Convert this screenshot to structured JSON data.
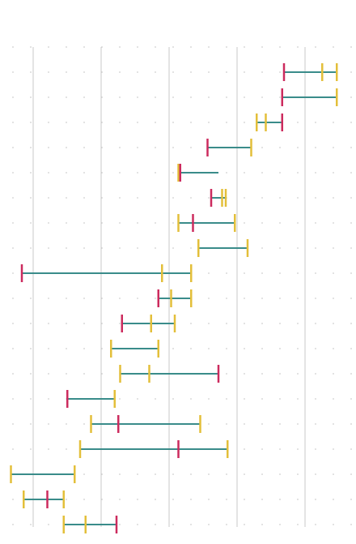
{
  "chart_data": {
    "type": "range-markers",
    "title": "",
    "xlabel": "",
    "ylabel": "",
    "xlim": [
      0,
      100
    ],
    "grid": "vertical",
    "colors": {
      "line": "#3a8c8a",
      "red_marker": "#cc2b5e",
      "yellow_marker": "#e3bf3a",
      "gridline": "#c8c8c8",
      "dot": "#cfcfcf"
    },
    "rows": [
      {
        "start": 78,
        "end": 92.5,
        "red": 78,
        "yellow": [
          92.5,
          88.5
        ]
      },
      {
        "start": 77.5,
        "end": 92.5,
        "red": 77.5,
        "yellow": [
          92.5
        ]
      },
      {
        "start": 70.5,
        "end": 77.5,
        "red": 77.5,
        "yellow": [
          70.5,
          73
        ]
      },
      {
        "start": 57,
        "end": 69,
        "red": 57,
        "yellow": [
          69
        ]
      },
      {
        "start": 49,
        "end": 60,
        "red": 49.5,
        "yellow": [
          49
        ]
      },
      {
        "start": 58,
        "end": 62,
        "red": 58,
        "yellow": [
          62,
          61
        ]
      },
      {
        "start": 49,
        "end": 64.5,
        "red": 53,
        "yellow": [
          49,
          64.5
        ]
      },
      {
        "start": 54.5,
        "end": 68,
        "red": null,
        "yellow": [
          54.5,
          68
        ]
      },
      {
        "start": 6,
        "end": 52.5,
        "red": 6,
        "yellow": [
          52.5,
          44.5
        ]
      },
      {
        "start": 43.5,
        "end": 52.5,
        "red": 43.5,
        "yellow": [
          47,
          52.5
        ]
      },
      {
        "start": 33.5,
        "end": 48,
        "red": 33.5,
        "yellow": [
          48,
          41.5
        ]
      },
      {
        "start": 30.5,
        "end": 43.5,
        "red": null,
        "yellow": [
          30.5,
          43.5
        ]
      },
      {
        "start": 33,
        "end": 60,
        "red": 60,
        "yellow": [
          33,
          41
        ]
      },
      {
        "start": 18.5,
        "end": 31.5,
        "red": 18.5,
        "yellow": [
          31.5
        ]
      },
      {
        "start": 25,
        "end": 55,
        "red": 32.5,
        "yellow": [
          25,
          55
        ]
      },
      {
        "start": 22,
        "end": 62.5,
        "red": 49,
        "yellow": [
          22,
          62.5
        ]
      },
      {
        "start": 3,
        "end": 20.5,
        "red": null,
        "yellow": [
          3,
          20.5
        ]
      },
      {
        "start": 6.5,
        "end": 17.5,
        "red": 13,
        "yellow": [
          6.5,
          17.5
        ]
      },
      {
        "start": 17.5,
        "end": 32,
        "red": 32,
        "yellow": [
          17.5,
          23.5
        ]
      }
    ]
  }
}
